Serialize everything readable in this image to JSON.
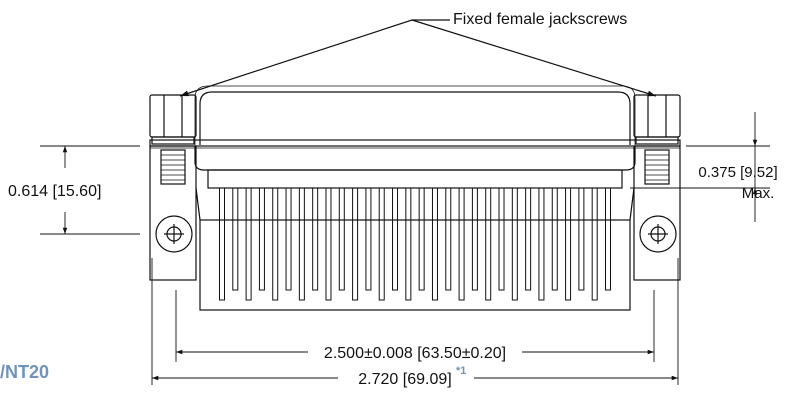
{
  "callout": {
    "label": "Fixed female jackscrews"
  },
  "dimensions": {
    "height_left": "0.614 [15.60]",
    "height_right_value": "0.375 [9.52]",
    "height_right_note": "Max.",
    "width_inner": "2.500±0.008 [63.50±0.20]",
    "width_outer": "2.720 [69.09]",
    "width_outer_note": "*1"
  },
  "part_tag": "/NT20",
  "colors": {
    "line": "#111111",
    "accent": "#6f93bd"
  },
  "pin_count": 30
}
